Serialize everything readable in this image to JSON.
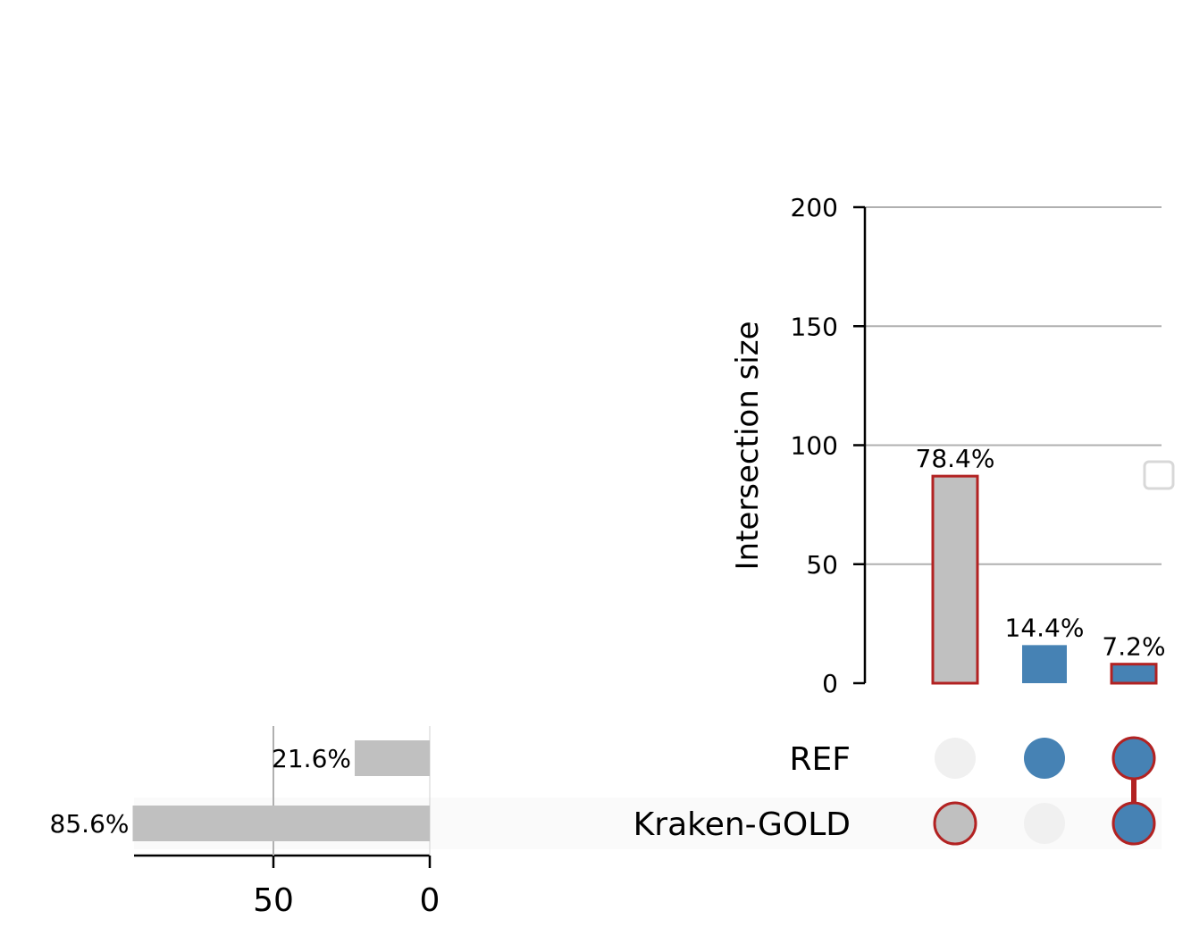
{
  "chart_data": {
    "type": "upset",
    "sets": [
      {
        "name": "REF",
        "size": 24,
        "label": "21.6%"
      },
      {
        "name": "Kraken-GOLD",
        "size": 95,
        "label": "85.6%"
      }
    ],
    "intersections": [
      {
        "members": [
          "Kraken-GOLD"
        ],
        "size": 87,
        "label": "78.4%",
        "highlight": true,
        "color": "#c0c0c0"
      },
      {
        "members": [
          "REF"
        ],
        "size": 16,
        "label": "14.4%",
        "highlight": false,
        "color": "#4682b4"
      },
      {
        "members": [
          "REF",
          "Kraken-GOLD"
        ],
        "size": 8,
        "label": "7.2%",
        "highlight": true,
        "color": "#4682b4"
      }
    ],
    "ylabel": "Intersection size",
    "ylim": [
      0,
      200
    ],
    "yticks": [
      0,
      50,
      100,
      150,
      200
    ],
    "set_size_ticks": [
      50,
      0
    ],
    "grid": true,
    "legend": "right",
    "colors": {
      "highlight_edge": "#b22222",
      "set_bar": "#c0c0c0",
      "inactive_dot": "#f0f0f0",
      "grid": "#b0b0b0",
      "row_shade": "#fafafa"
    }
  }
}
